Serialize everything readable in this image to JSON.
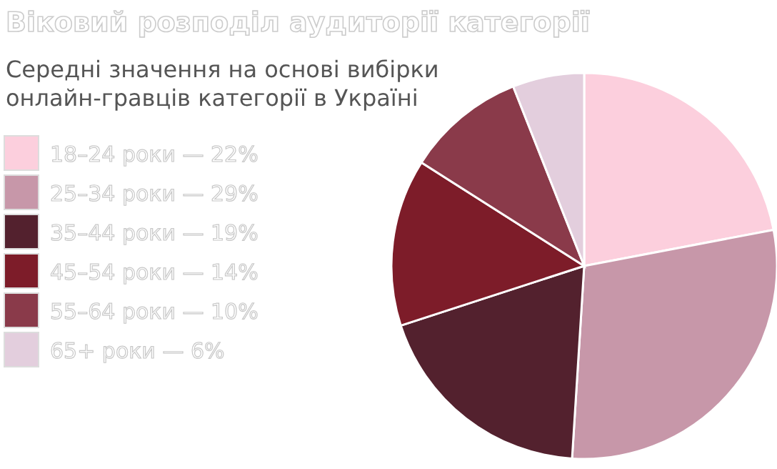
{
  "chart_data": {
    "type": "pie",
    "title": "Віковий розподіл аудиторії категорії",
    "subtitle": "Середні значення на основі вибірки онлайн-гравців категорії в Україні",
    "categories": [
      "18–24 роки — 22%",
      "25–34 роки — 29%",
      "35–44 роки — 19%",
      "45–54 роки — 14%",
      "55–64 роки — 10%",
      "65+ роки — 6%"
    ],
    "values": [
      22,
      29,
      19,
      14,
      10,
      6
    ],
    "colors": [
      "#fccfdd",
      "#c797a9",
      "#53212e",
      "#7d1c29",
      "#8a3a4a",
      "#e3cedd"
    ],
    "legend": "left"
  }
}
